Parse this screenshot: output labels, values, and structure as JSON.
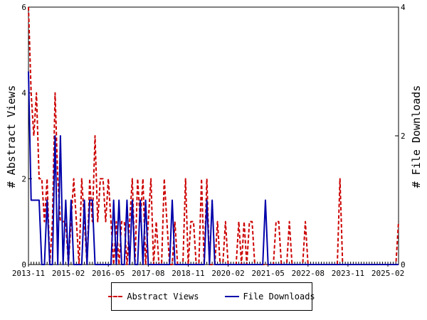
{
  "chart_data": {
    "type": "line",
    "x": [
      "2013-11",
      "2013-12",
      "2014-01",
      "2014-02",
      "2014-03",
      "2014-04",
      "2014-05",
      "2014-06",
      "2014-07",
      "2014-08",
      "2014-09",
      "2014-10",
      "2014-11",
      "2014-12",
      "2015-01",
      "2015-02",
      "2015-03",
      "2015-04",
      "2015-05",
      "2015-06",
      "2015-07",
      "2015-08",
      "2015-09",
      "2015-10",
      "2015-11",
      "2015-12",
      "2016-01",
      "2016-02",
      "2016-03",
      "2016-04",
      "2016-05",
      "2016-06",
      "2016-07",
      "2016-08",
      "2016-09",
      "2016-10",
      "2016-11",
      "2016-12",
      "2017-01",
      "2017-02",
      "2017-03",
      "2017-04",
      "2017-05",
      "2017-06",
      "2017-07",
      "2017-08",
      "2017-09",
      "2017-10",
      "2017-11",
      "2017-12",
      "2018-01",
      "2018-02",
      "2018-03",
      "2018-04",
      "2018-05",
      "2018-06",
      "2018-07",
      "2018-08",
      "2018-09",
      "2018-10",
      "2018-11",
      "2018-12",
      "2019-01",
      "2019-02",
      "2019-03",
      "2019-04",
      "2019-05",
      "2019-06",
      "2019-07",
      "2019-08",
      "2019-09",
      "2019-10",
      "2019-11",
      "2019-12",
      "2020-01",
      "2020-02",
      "2020-03",
      "2020-04",
      "2020-05",
      "2020-06",
      "2020-07",
      "2020-08",
      "2020-09",
      "2020-10",
      "2020-11",
      "2020-12",
      "2021-01",
      "2021-02",
      "2021-03",
      "2021-04",
      "2021-05",
      "2021-06",
      "2021-07",
      "2021-08",
      "2021-09",
      "2021-10",
      "2021-11",
      "2021-12",
      "2022-01",
      "2022-02",
      "2022-03",
      "2022-04",
      "2022-05",
      "2022-06",
      "2022-07",
      "2022-08",
      "2022-09",
      "2022-10",
      "2022-11",
      "2022-12",
      "2023-01",
      "2023-02",
      "2023-03",
      "2023-04",
      "2023-05",
      "2023-06",
      "2023-07",
      "2023-08",
      "2023-09",
      "2023-10",
      "2023-11",
      "2023-12",
      "2024-01",
      "2024-02",
      "2024-03",
      "2024-04",
      "2024-05",
      "2024-06",
      "2024-07",
      "2024-08",
      "2024-09",
      "2024-10",
      "2024-11",
      "2024-12",
      "2025-01",
      "2025-02",
      "2025-03",
      "2025-04",
      "2025-05",
      "2025-06"
    ],
    "series": [
      {
        "name": "Abstract Views",
        "axis": "left",
        "style": "dashed",
        "color": "#cc0000",
        "values": [
          6,
          4,
          3,
          4,
          2,
          2,
          1,
          2,
          0,
          1,
          4,
          2,
          1,
          1,
          1,
          0,
          1,
          2,
          1,
          0,
          2,
          1,
          0,
          2,
          1,
          3,
          1,
          2,
          2,
          1,
          2,
          1,
          0,
          1,
          0,
          1,
          1,
          0,
          1,
          2,
          0,
          2,
          1,
          2,
          0,
          1,
          2,
          0,
          1,
          0,
          0,
          2,
          1,
          0,
          0,
          1,
          0,
          0,
          0,
          2,
          0,
          1,
          1,
          0,
          0,
          2,
          0,
          2,
          0,
          0,
          0,
          1,
          0,
          0,
          1,
          0,
          0,
          0,
          0,
          1,
          0,
          1,
          0,
          1,
          1,
          0,
          0,
          0,
          0,
          0,
          0,
          0,
          0,
          1,
          1,
          0,
          0,
          0,
          1,
          0,
          0,
          0,
          0,
          0,
          1,
          0,
          0,
          0,
          0,
          0,
          0,
          0,
          0,
          0,
          0,
          0,
          0,
          2,
          0,
          0,
          0,
          0,
          0,
          0,
          0,
          0,
          0,
          0,
          0,
          0,
          0,
          0,
          0,
          0,
          0,
          0,
          0,
          0,
          0,
          1
        ]
      },
      {
        "name": "File Downloads",
        "axis": "right",
        "style": "solid",
        "color": "#0000aa",
        "values": [
          3,
          1,
          1,
          1,
          1,
          0,
          0,
          1,
          0,
          0,
          2,
          0,
          2,
          0,
          1,
          0,
          1,
          0,
          0,
          0,
          0,
          1,
          0,
          1,
          1,
          0,
          0,
          0,
          0,
          0,
          0,
          0,
          1,
          0,
          1,
          0,
          0,
          1,
          0,
          1,
          0,
          0,
          1,
          0,
          1,
          0,
          0,
          0,
          0,
          0,
          0,
          0,
          0,
          0,
          1,
          0,
          0,
          0,
          0,
          0,
          0,
          0,
          0,
          0,
          0,
          0,
          0,
          1,
          0,
          1,
          0,
          0,
          0,
          0,
          0,
          0,
          0,
          0,
          0,
          0,
          0,
          0,
          0,
          0,
          0,
          0,
          0,
          0,
          0,
          1,
          0,
          0,
          0,
          0,
          0,
          0,
          0,
          0,
          0,
          0,
          0,
          0,
          0,
          0,
          0,
          0,
          0,
          0,
          0,
          0,
          0,
          0,
          0,
          0,
          0,
          0,
          0,
          0,
          0,
          0,
          0,
          0,
          0,
          0,
          0,
          0,
          0,
          0,
          0,
          0,
          0,
          0,
          0,
          0,
          0,
          0,
          0,
          0,
          0,
          0
        ]
      }
    ],
    "ylabel_left": "# Abstract Views",
    "ylabel_right": "# File Downloads",
    "ylim_left": [
      0,
      6
    ],
    "ylim_right": [
      0,
      4
    ],
    "yticks_left": [
      "0",
      "2",
      "4",
      "6"
    ],
    "yticks_right": [
      "0",
      "2",
      "4"
    ],
    "xtick_labels": [
      "2013-11",
      "2015-02",
      "2016-05",
      "2017-08",
      "2018-11",
      "2020-02",
      "2021-05",
      "2022-08",
      "2023-11",
      "2025-02"
    ],
    "grid": false,
    "legend_position": "bottom"
  },
  "legend": {
    "abstract_views": "Abstract Views",
    "file_downloads": "File Downloads"
  }
}
